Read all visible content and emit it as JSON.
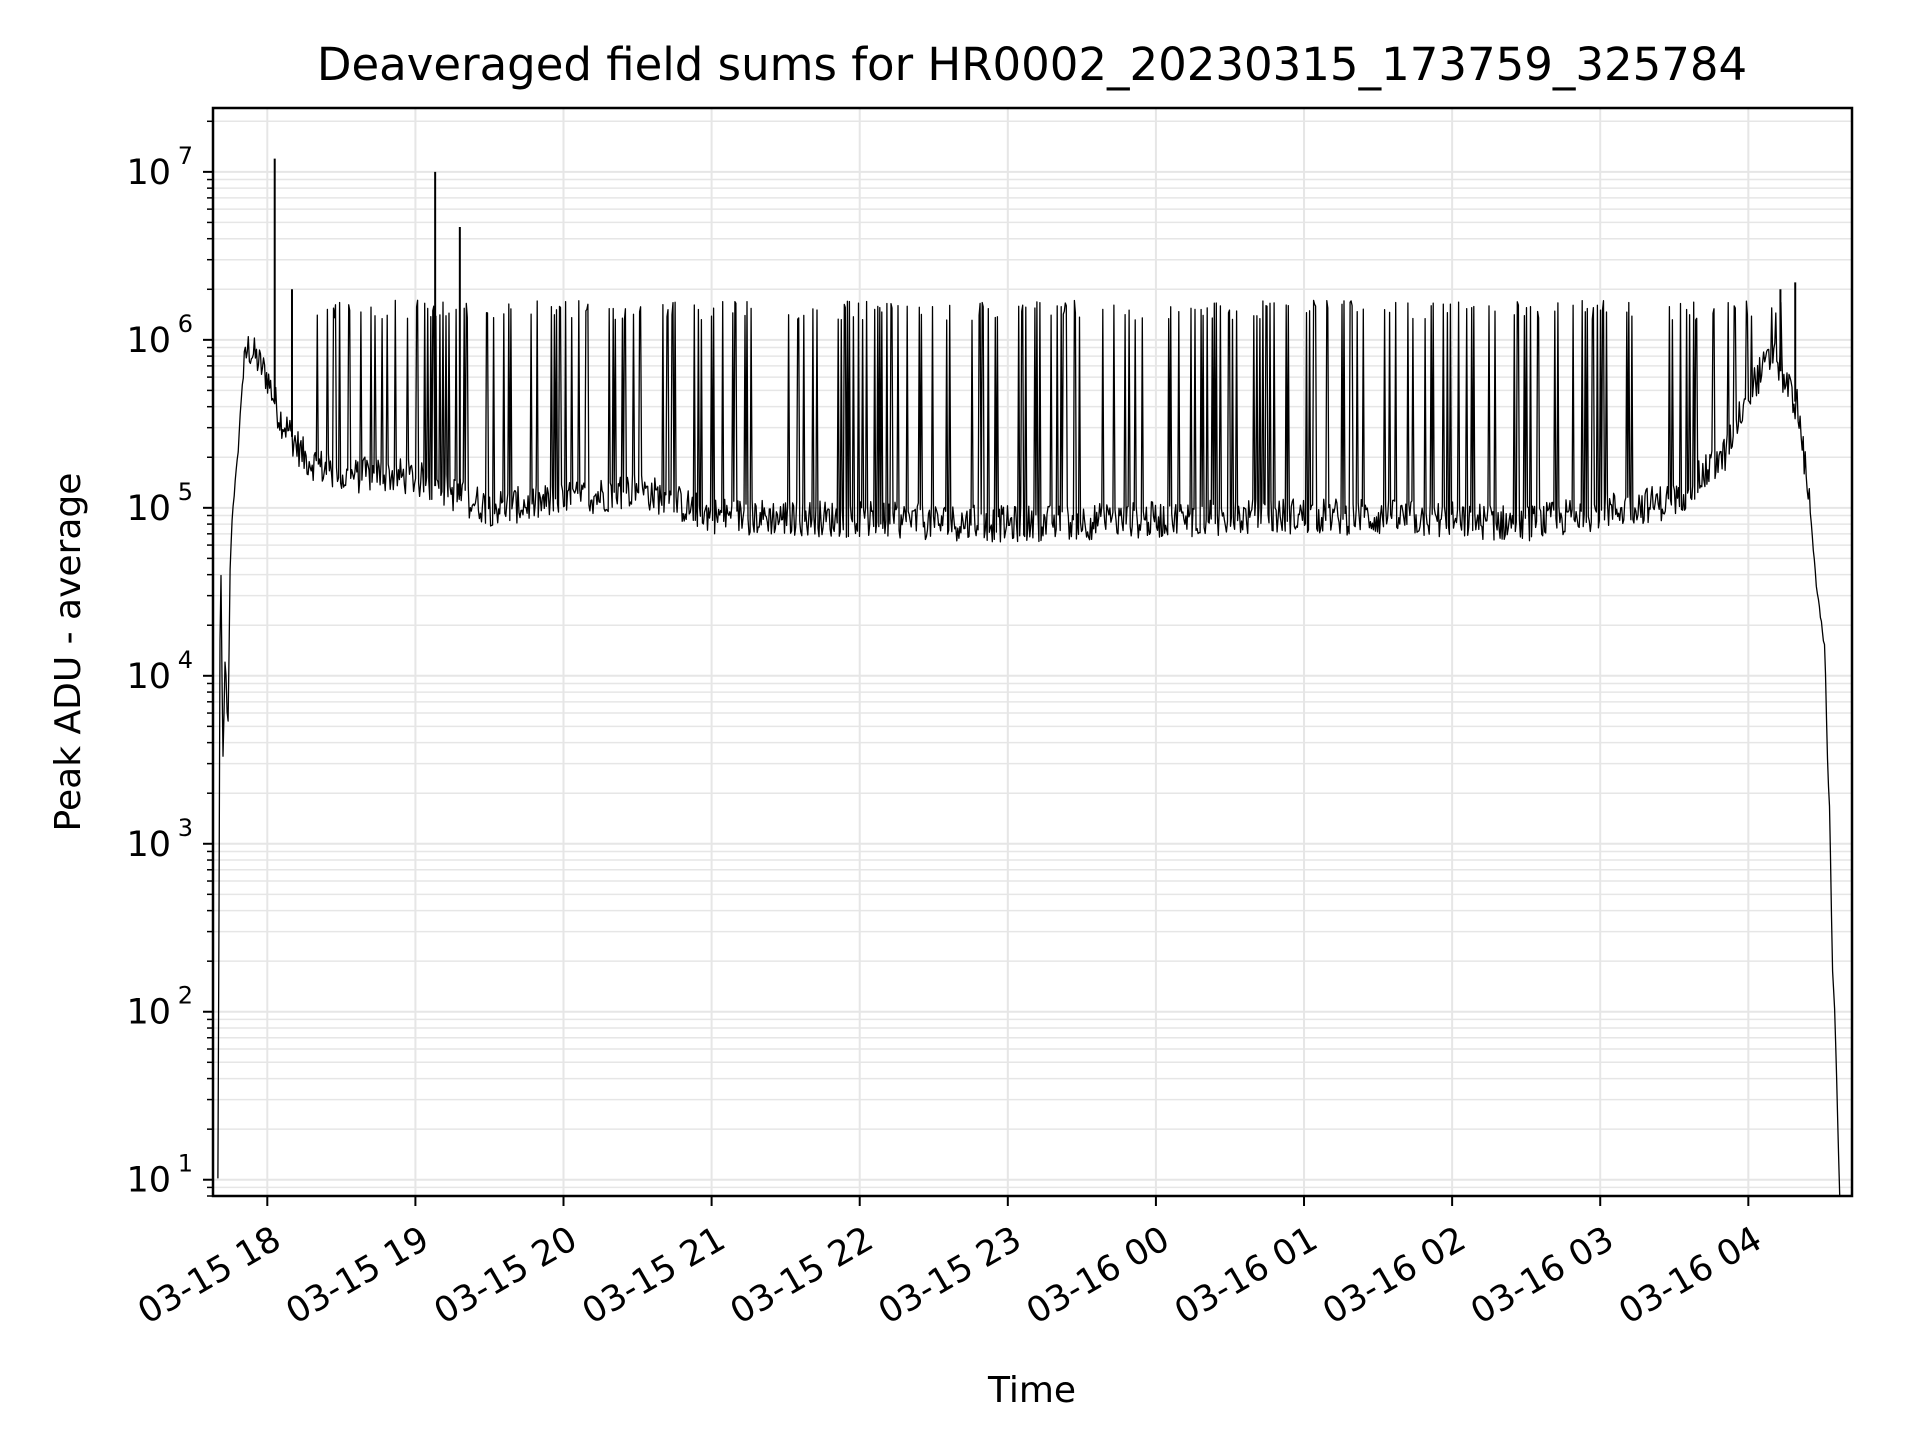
{
  "chart_data": {
    "type": "line",
    "title": "Deaveraged field sums for HR0002_20230315_173759_325784",
    "xlabel": "Time",
    "ylabel": "Peak ADU - average",
    "yscale": "log",
    "grid": true,
    "grid_minor": true,
    "line_color": "#000000",
    "grid_color": "#e6e6e6",
    "xlim": [
      "2023-03-15 17:38",
      "2023-03-16 04:42"
    ],
    "ylim": [
      8,
      24000000
    ],
    "x_ticks": [
      {
        "value": "2023-03-15 18:00",
        "label": "03-15 18"
      },
      {
        "value": "2023-03-15 19:00",
        "label": "03-15 19"
      },
      {
        "value": "2023-03-15 20:00",
        "label": "03-15 20"
      },
      {
        "value": "2023-03-15 21:00",
        "label": "03-15 21"
      },
      {
        "value": "2023-03-15 22:00",
        "label": "03-15 22"
      },
      {
        "value": "2023-03-15 23:00",
        "label": "03-15 23"
      },
      {
        "value": "2023-03-16 00:00",
        "label": "03-16 00"
      },
      {
        "value": "2023-03-16 01:00",
        "label": "03-16 01"
      },
      {
        "value": "2023-03-16 02:00",
        "label": "03-16 02"
      },
      {
        "value": "2023-03-16 03:00",
        "label": "03-16 03"
      },
      {
        "value": "2023-03-16 04:00",
        "label": "03-16 04"
      }
    ],
    "y_ticks": [
      {
        "value": 10,
        "base": "10",
        "exp": "1"
      },
      {
        "value": 100,
        "base": "10",
        "exp": "2"
      },
      {
        "value": 1000,
        "base": "10",
        "exp": "3"
      },
      {
        "value": 10000,
        "base": "10",
        "exp": "4"
      },
      {
        "value": 100000,
        "base": "10",
        "exp": "5"
      },
      {
        "value": 1000000,
        "base": "10",
        "exp": "6"
      },
      {
        "value": 10000000,
        "base": "10",
        "exp": "7"
      }
    ],
    "series": [
      {
        "x": [
          "2023-03-15 17:40",
          "2023-03-15 17:41",
          "2023-03-15 17:42",
          "2023-03-15 17:43",
          "2023-03-15 17:44",
          "2023-03-15 17:45",
          "2023-03-15 17:46",
          "2023-03-15 17:48",
          "2023-03-15 17:50",
          "2023-03-15 17:52",
          "2023-03-15 17:55",
          "2023-03-15 18:00",
          "2023-03-15 18:05",
          "2023-03-15 18:15",
          "2023-03-15 18:30",
          "2023-03-15 18:45",
          "2023-03-15 19:00",
          "2023-03-15 19:30",
          "2023-03-15 20:00",
          "2023-03-15 20:30",
          "2023-03-15 21:00",
          "2023-03-15 22:00",
          "2023-03-15 23:00",
          "2023-03-16 00:00",
          "2023-03-16 01:00",
          "2023-03-16 02:00",
          "2023-03-16 02:30",
          "2023-03-16 03:00",
          "2023-03-16 03:30",
          "2023-03-16 03:50",
          "2023-03-16 04:00",
          "2023-03-16 04:10",
          "2023-03-16 04:20",
          "2023-03-16 04:25",
          "2023-03-16 04:28",
          "2023-03-16 04:31",
          "2023-03-16 04:32",
          "2023-03-16 04:33",
          "2023-03-16 04:34",
          "2023-03-16 04:35",
          "2023-03-16 04:36",
          "2023-03-16 04:37"
        ],
        "y": [
          10,
          80000,
          3000,
          14000,
          4000,
          50000,
          100000,
          200000,
          600000,
          900000,
          800000,
          600000,
          350000,
          200000,
          150000,
          160000,
          150000,
          100000,
          110000,
          130000,
          90000,
          85000,
          80000,
          85000,
          90000,
          85000,
          80000,
          95000,
          110000,
          200000,
          500000,
          800000,
          400000,
          100000,
          30000,
          14000,
          3500,
          1500,
          200,
          100,
          30,
          8
        ],
        "peaks": [
          {
            "x": "2023-03-15 18:03",
            "y": 12000000
          },
          {
            "x": "2023-03-15 19:08",
            "y": 10000000
          },
          {
            "x": "2023-03-15 19:18",
            "y": 4700000
          },
          {
            "x": "2023-03-15 18:10",
            "y": 2000000
          },
          {
            "x": "2023-03-16 04:19",
            "y": 2200000
          },
          {
            "x": "2023-03-16 04:13",
            "y": 2000000
          }
        ],
        "spike_band": {
          "from": "2023-03-15 18:10",
          "to": "2023-03-16 04:15",
          "typical_peak": 1500000
        }
      }
    ]
  }
}
